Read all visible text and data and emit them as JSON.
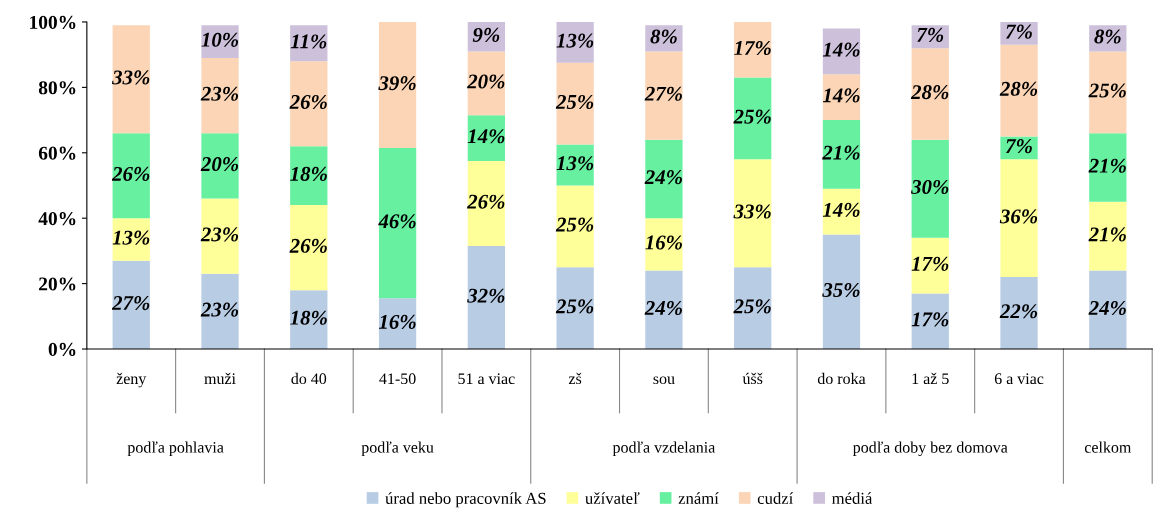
{
  "chart_data": {
    "type": "bar",
    "stacked": true,
    "categories": [
      "ženy",
      "muži",
      "do 40",
      "41-50",
      "51 a viac",
      "zš",
      "sou",
      "úšš",
      "do roka",
      "1 až 5",
      "6 a viac",
      null
    ],
    "series": [
      {
        "name": "úrad nebo pracovník AS",
        "color": "#b8cce4",
        "values": [
          27,
          23,
          18,
          15.5,
          31.5,
          25,
          24,
          25,
          35,
          17,
          22,
          24
        ],
        "value_labels": [
          "27%",
          "23%",
          "18%",
          "16%",
          "32%",
          "25%",
          "24%",
          "25%",
          "35%",
          "17%",
          "22%",
          "24%"
        ]
      },
      {
        "name": "užívateľ",
        "color": "#ffff99",
        "values": [
          13,
          23,
          26,
          0,
          26,
          25,
          16,
          33,
          14,
          17,
          36,
          21
        ],
        "value_labels": [
          "13%",
          "23%",
          "26%",
          null,
          "26%",
          "25%",
          "16%",
          "33%",
          "14%",
          "17%",
          "36%",
          "21%"
        ]
      },
      {
        "name": "známí",
        "color": "#66f0a0",
        "values": [
          26,
          20,
          18,
          46,
          14,
          12.5,
          24,
          25,
          21,
          30,
          7,
          21
        ],
        "value_labels": [
          "26%",
          "20%",
          "18%",
          "46%",
          "14%",
          "13%",
          "24%",
          "25%",
          "21%",
          "30%",
          "7%",
          "21%"
        ]
      },
      {
        "name": "cudzí",
        "color": "#fbd5b5",
        "values": [
          33,
          23,
          26,
          38.5,
          19.5,
          25,
          27,
          17,
          14,
          28,
          28,
          25
        ],
        "value_labels": [
          "33%",
          "23%",
          "26%",
          "39%",
          "20%",
          "25%",
          "27%",
          "17%",
          "14%",
          "28%",
          "28%",
          "25%"
        ]
      },
      {
        "name": "médiá",
        "color": "#ccc0da",
        "values": [
          0,
          10,
          11,
          0,
          9,
          12.5,
          8,
          0,
          14,
          7,
          7,
          8
        ],
        "value_labels": [
          null,
          "10%",
          "11%",
          null,
          "9%",
          "13%",
          "8%",
          null,
          "14%",
          "7%",
          "7%",
          "8%"
        ]
      }
    ],
    "ylim": [
      0,
      100
    ],
    "yticks": [
      {
        "value": 0,
        "label": "0%"
      },
      {
        "value": 20,
        "label": "20%"
      },
      {
        "value": 40,
        "label": "40%"
      },
      {
        "value": 60,
        "label": "60%"
      },
      {
        "value": 80,
        "label": "80%"
      },
      {
        "value": 100,
        "label": "100%"
      }
    ],
    "annotations": [
      "podľa pohlavia",
      "podľa veku",
      "podľa vzdelania",
      "podľa doby bez domova",
      "celkom"
    ],
    "grid": false,
    "legend": "bottom"
  }
}
